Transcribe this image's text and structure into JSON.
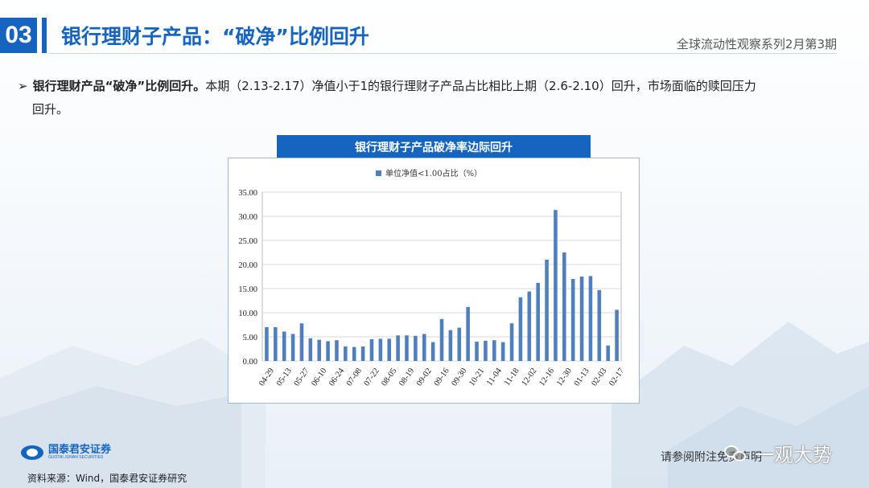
{
  "header": {
    "section_number": "03",
    "title": "银行理财子产品：“破净”比例回升",
    "series_label": "全球流动性观察系列2月第3期"
  },
  "bullet": {
    "arrow": "➢",
    "lead": "银行理财产品“破净”比例回升。",
    "text_line1": "本期（2.13-2.17）净值小于1的银行理财子产品占比相比上期（2.6-2.10）回升，市场面临的赎回压力",
    "text_line2": "回升。"
  },
  "chart_title": "银行理财子产品破净率边际回升",
  "chart_data": {
    "type": "bar",
    "legend": "单位净值<1.00占比（%）",
    "legend_position": "top-center",
    "color": "#4f7fbf",
    "ylim": [
      0,
      35
    ],
    "yticks": [
      "0.00",
      "5.00",
      "10.00",
      "15.00",
      "20.00",
      "25.00",
      "30.00",
      "35.00"
    ],
    "grid": true,
    "xtick_labels": [
      "04-29",
      "05-13",
      "05-27",
      "06-10",
      "06-24",
      "07-08",
      "07-22",
      "08-05",
      "08-19",
      "09-02",
      "09-16",
      "09-30",
      "10-21",
      "11-04",
      "11-18",
      "12-02",
      "12-16",
      "12-30",
      "01-13",
      "02-03",
      "02-17"
    ],
    "values": [
      7.0,
      7.0,
      6.1,
      5.6,
      7.8,
      4.7,
      4.4,
      4.1,
      4.3,
      3.0,
      2.9,
      3.0,
      4.5,
      4.6,
      4.6,
      5.3,
      5.3,
      5.2,
      5.6,
      3.9,
      8.7,
      6.4,
      6.9,
      11.2,
      4.0,
      4.2,
      4.3,
      3.9,
      7.8,
      13.2,
      14.4,
      16.2,
      21.0,
      31.3,
      22.5,
      17.0,
      17.5,
      17.6,
      14.7,
      3.2,
      10.6
    ]
  },
  "footer": {
    "logo_cn": "国泰君安证券",
    "logo_en": "GUOTAI JUNAN SECURITIES",
    "source": "资料来源：Wind，国泰君安证券研究",
    "disclaimer": "请参阅附注免责声明",
    "watermark": "一观大势",
    "watermark_icon": "wechat-icon"
  }
}
